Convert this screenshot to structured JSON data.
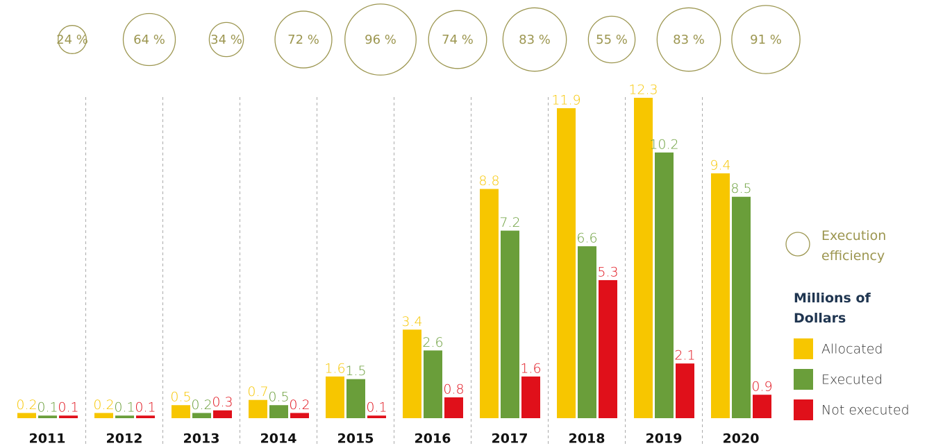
{
  "chart_data": {
    "type": "bar",
    "categories": [
      "2011",
      "2012",
      "2013",
      "2014",
      "2015",
      "2016",
      "2017",
      "2018",
      "2019",
      "2020"
    ],
    "series": [
      {
        "name": "Allocated",
        "color": "#f7c600",
        "values": [
          0.2,
          0.2,
          0.5,
          0.7,
          1.6,
          3.4,
          8.8,
          11.9,
          12.3,
          9.4
        ]
      },
      {
        "name": "Executed",
        "color": "#6a9e3a",
        "values": [
          0.1,
          0.1,
          0.2,
          0.5,
          1.5,
          2.6,
          7.2,
          6.6,
          10.2,
          8.5
        ]
      },
      {
        "name": "Not executed",
        "color": "#e0101a",
        "values": [
          0.1,
          0.1,
          0.3,
          0.2,
          0.1,
          0.8,
          1.6,
          5.3,
          2.1,
          0.9
        ]
      }
    ],
    "efficiency": {
      "name": "Execution efficiency",
      "color": "#9c9650",
      "values": [
        24,
        64,
        34,
        72,
        96,
        74,
        83,
        55,
        83,
        91
      ],
      "value_labels": [
        "24 %",
        "64 %",
        "34 %",
        "72 %",
        "96 %",
        "74 %",
        "83 %",
        "55 %",
        "83 %",
        "91 %"
      ]
    },
    "legend_title": "Millions of Dollars"
  }
}
